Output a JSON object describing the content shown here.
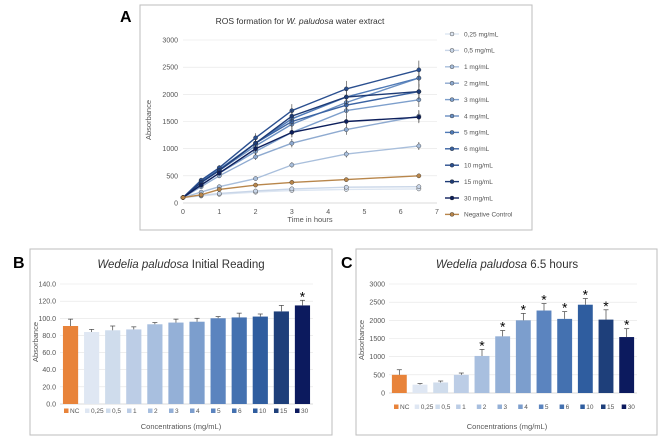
{
  "chart_data": [
    {
      "panel": "A",
      "type": "line",
      "title_prefix": "ROS formation for ",
      "title_species": "W. paludosa",
      "title_suffix": " water extract",
      "xlabel": "Time in hours",
      "ylabel": "Absorbance",
      "xlim": [
        0,
        7
      ],
      "ylim": [
        0,
        3000
      ],
      "xticks": [
        "0",
        "1",
        "2",
        "3",
        "4",
        "5",
        "6",
        "7"
      ],
      "yticks": [
        "0",
        "500",
        "1000",
        "1500",
        "2000",
        "2500",
        "3000"
      ],
      "x": [
        0,
        0.5,
        1,
        2,
        3,
        4.5,
        6.5
      ],
      "series": [
        {
          "name": "0,25 mg/mL",
          "color": "#dde6f2",
          "values": [
            100,
            130,
            160,
            200,
            230,
            250,
            260
          ]
        },
        {
          "name": "0,5 mg/mL",
          "color": "#c9d6e8",
          "values": [
            100,
            140,
            175,
            220,
            260,
            290,
            300
          ]
        },
        {
          "name": "1 mg/mL",
          "color": "#a9bfdc",
          "values": [
            100,
            200,
            300,
            450,
            700,
            900,
            1050
          ]
        },
        {
          "name": "2 mg/mL",
          "color": "#8eaad0",
          "values": [
            100,
            300,
            500,
            850,
            1100,
            1350,
            1600
          ]
        },
        {
          "name": "3 mg/mL",
          "color": "#7d9fcc",
          "values": [
            100,
            330,
            550,
            950,
            1300,
            1700,
            1900
          ]
        },
        {
          "name": "4 mg/mL",
          "color": "#6a8fc2",
          "values": [
            100,
            370,
            600,
            1050,
            1450,
            1850,
            2300
          ]
        },
        {
          "name": "5 mg/mL",
          "color": "#4f7ab7",
          "values": [
            100,
            400,
            620,
            1100,
            1550,
            1950,
            2300
          ]
        },
        {
          "name": "6 mg/mL",
          "color": "#3a63a3",
          "values": [
            100,
            380,
            600,
            1100,
            1500,
            1800,
            2050
          ]
        },
        {
          "name": "10 mg/mL",
          "color": "#2a4f8f",
          "values": [
            100,
            420,
            650,
            1200,
            1700,
            2100,
            2450
          ]
        },
        {
          "name": "15 mg/mL",
          "color": "#1d3b76",
          "values": [
            100,
            380,
            600,
            1100,
            1600,
            1950,
            2050
          ]
        },
        {
          "name": "30 mg/mL",
          "color": "#0d1f5c",
          "values": [
            100,
            330,
            550,
            1000,
            1300,
            1500,
            1580
          ]
        },
        {
          "name": "Negative Control",
          "color": "#b8864b",
          "values": [
            100,
            150,
            250,
            330,
            380,
            430,
            500
          ]
        }
      ]
    },
    {
      "panel": "B",
      "type": "bar",
      "title_species": "Wedelia paludosa",
      "title_suffix": " Initial Reading",
      "xlabel": "Concentrations (mg/mL)",
      "ylabel": "Absorbance",
      "ylim": [
        0,
        140
      ],
      "yticks": [
        "0.0",
        "20.0",
        "40.0",
        "60.0",
        "80.0",
        "100.0",
        "120.0",
        "140.0"
      ],
      "categories": [
        "NC",
        "0,25",
        "0,5",
        "1",
        "2",
        "3",
        "4",
        "5",
        "6",
        "10",
        "15",
        "30"
      ],
      "values": [
        91,
        84,
        86,
        87,
        93,
        95,
        96,
        100,
        101,
        102,
        108,
        115
      ],
      "errors": [
        8,
        3,
        5,
        3,
        2,
        4,
        4,
        2,
        5,
        3,
        7,
        6
      ],
      "significant": [
        false,
        false,
        false,
        false,
        false,
        false,
        false,
        false,
        false,
        false,
        false,
        true
      ],
      "colors": [
        "#e8833a",
        "#dfe7f3",
        "#cfdcec",
        "#bccde6",
        "#a8bfdf",
        "#94b0d7",
        "#7c9ecd",
        "#5b84bf",
        "#4471b0",
        "#2f5d9f",
        "#1e3f7a",
        "#0c1a5e"
      ],
      "star_symbol": "*"
    },
    {
      "panel": "C",
      "type": "bar",
      "title_species": "Wedelia paludosa",
      "title_suffix": " 6.5 hours",
      "xlabel": "Concentrations (mg/mL)",
      "ylabel": "Absorbance",
      "ylim": [
        0,
        3000
      ],
      "yticks": [
        "0",
        "500",
        "1000",
        "1500",
        "2000",
        "2500",
        "3000"
      ],
      "categories": [
        "NC",
        "0,25",
        "0,5",
        "1",
        "2",
        "3",
        "4",
        "5",
        "6",
        "10",
        "15",
        "30"
      ],
      "values": [
        500,
        230,
        290,
        500,
        1020,
        1560,
        2000,
        2270,
        2040,
        2430,
        2020,
        1540
      ],
      "errors": [
        140,
        30,
        40,
        50,
        180,
        160,
        190,
        190,
        200,
        170,
        270,
        230
      ],
      "significant": [
        false,
        false,
        false,
        false,
        true,
        true,
        true,
        true,
        true,
        true,
        true,
        true
      ],
      "colors": [
        "#e8833a",
        "#dfe7f3",
        "#cfdcec",
        "#bccde6",
        "#a8bfdf",
        "#94b0d7",
        "#7c9ecd",
        "#5b84bf",
        "#4471b0",
        "#2f5d9f",
        "#1e3f7a",
        "#0c1a5e"
      ],
      "star_symbol": "*"
    }
  ]
}
